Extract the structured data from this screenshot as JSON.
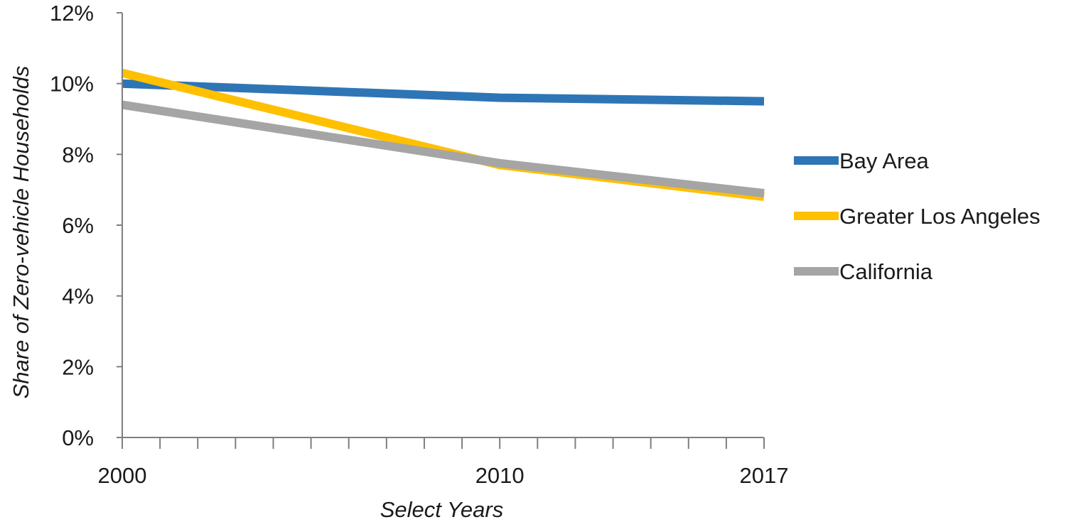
{
  "chart_data": {
    "type": "line",
    "title": "",
    "xlabel": "Select Years",
    "ylabel": "Share of Zero-vehicle Households",
    "x": [
      2000,
      2010,
      2017
    ],
    "xlim": [
      2000,
      2017
    ],
    "x_tick_labels": [
      "2000",
      "2010",
      "2017"
    ],
    "ylim": [
      0,
      12
    ],
    "y_ticks": [
      0,
      2,
      4,
      6,
      8,
      10,
      12
    ],
    "y_tick_labels": [
      "0%",
      "2%",
      "4%",
      "6%",
      "8%",
      "10%",
      "12%"
    ],
    "y_unit": "percent",
    "grid": false,
    "legend_position": "right",
    "series": [
      {
        "name": "Bay Area",
        "color": "#2e75b6",
        "values": [
          10.0,
          9.6,
          9.5
        ]
      },
      {
        "name": "Greater Los Angeles",
        "color": "#ffc000",
        "values": [
          10.3,
          7.7,
          6.8
        ]
      },
      {
        "name": "California",
        "color": "#a5a5a5",
        "values": [
          9.4,
          7.75,
          6.9
        ]
      }
    ]
  }
}
